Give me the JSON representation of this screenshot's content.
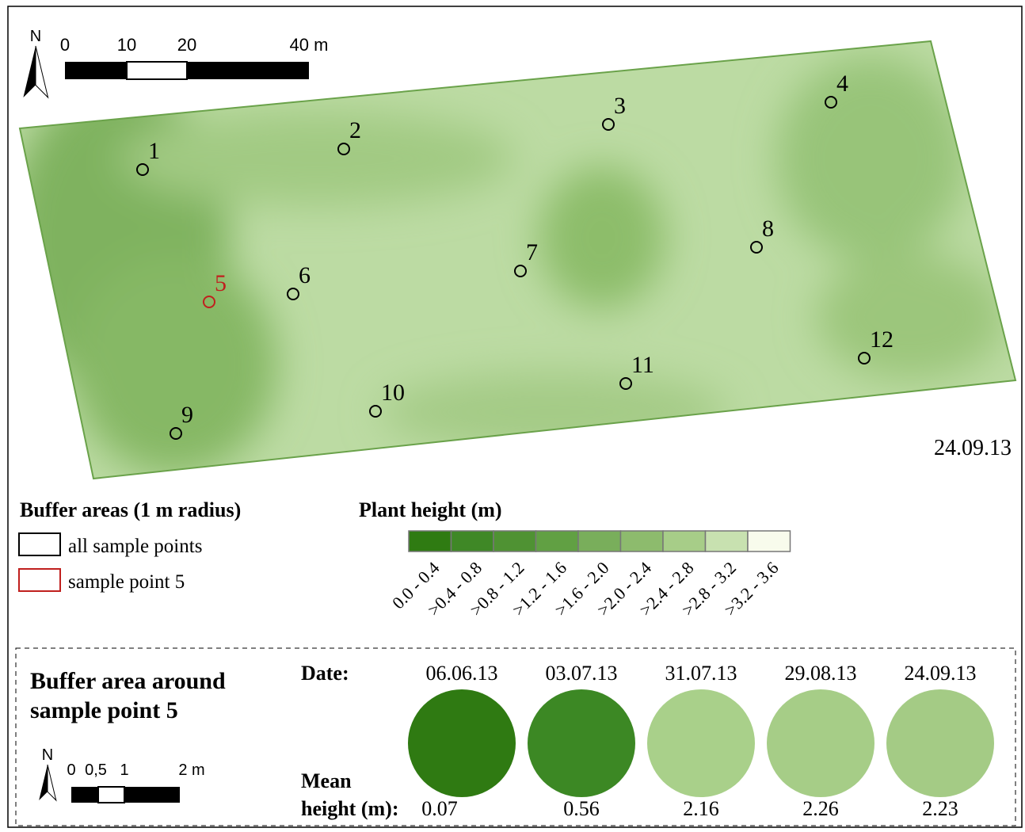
{
  "map": {
    "north": "N",
    "scale_labels": [
      "0",
      "10",
      "20",
      "40 m"
    ],
    "date": "24.09.13",
    "points": [
      "1",
      "2",
      "3",
      "4",
      "5",
      "6",
      "7",
      "8",
      "9",
      "10",
      "11",
      "12"
    ]
  },
  "legend": {
    "buffer_title": "Buffer areas (1 m radius)",
    "items": [
      "all sample points",
      "sample point 5"
    ],
    "height_title": "Plant height (m)",
    "classes": [
      "0.0 - 0.4",
      ">0.4 - 0.8",
      ">0.8 - 1.2",
      ">1.2 - 1.6",
      ">1.6 - 2.0",
      ">2.0 - 2.4",
      ">2.4 - 2.8",
      ">2.8 - 3.2",
      ">3.2 - 3.6"
    ]
  },
  "inset": {
    "title": [
      "Buffer area around",
      "sample point 5"
    ],
    "date_label": "Date:",
    "mean_label": [
      "Mean",
      "height (m):"
    ],
    "dates": [
      "06.06.13",
      "03.07.13",
      "31.07.13",
      "29.08.13",
      "24.09.13"
    ],
    "means": [
      0.07,
      0.56,
      2.16,
      2.26,
      2.23
    ],
    "north": "N",
    "scale_labels": [
      "0",
      "0,5",
      "1",
      "2 m"
    ]
  }
}
